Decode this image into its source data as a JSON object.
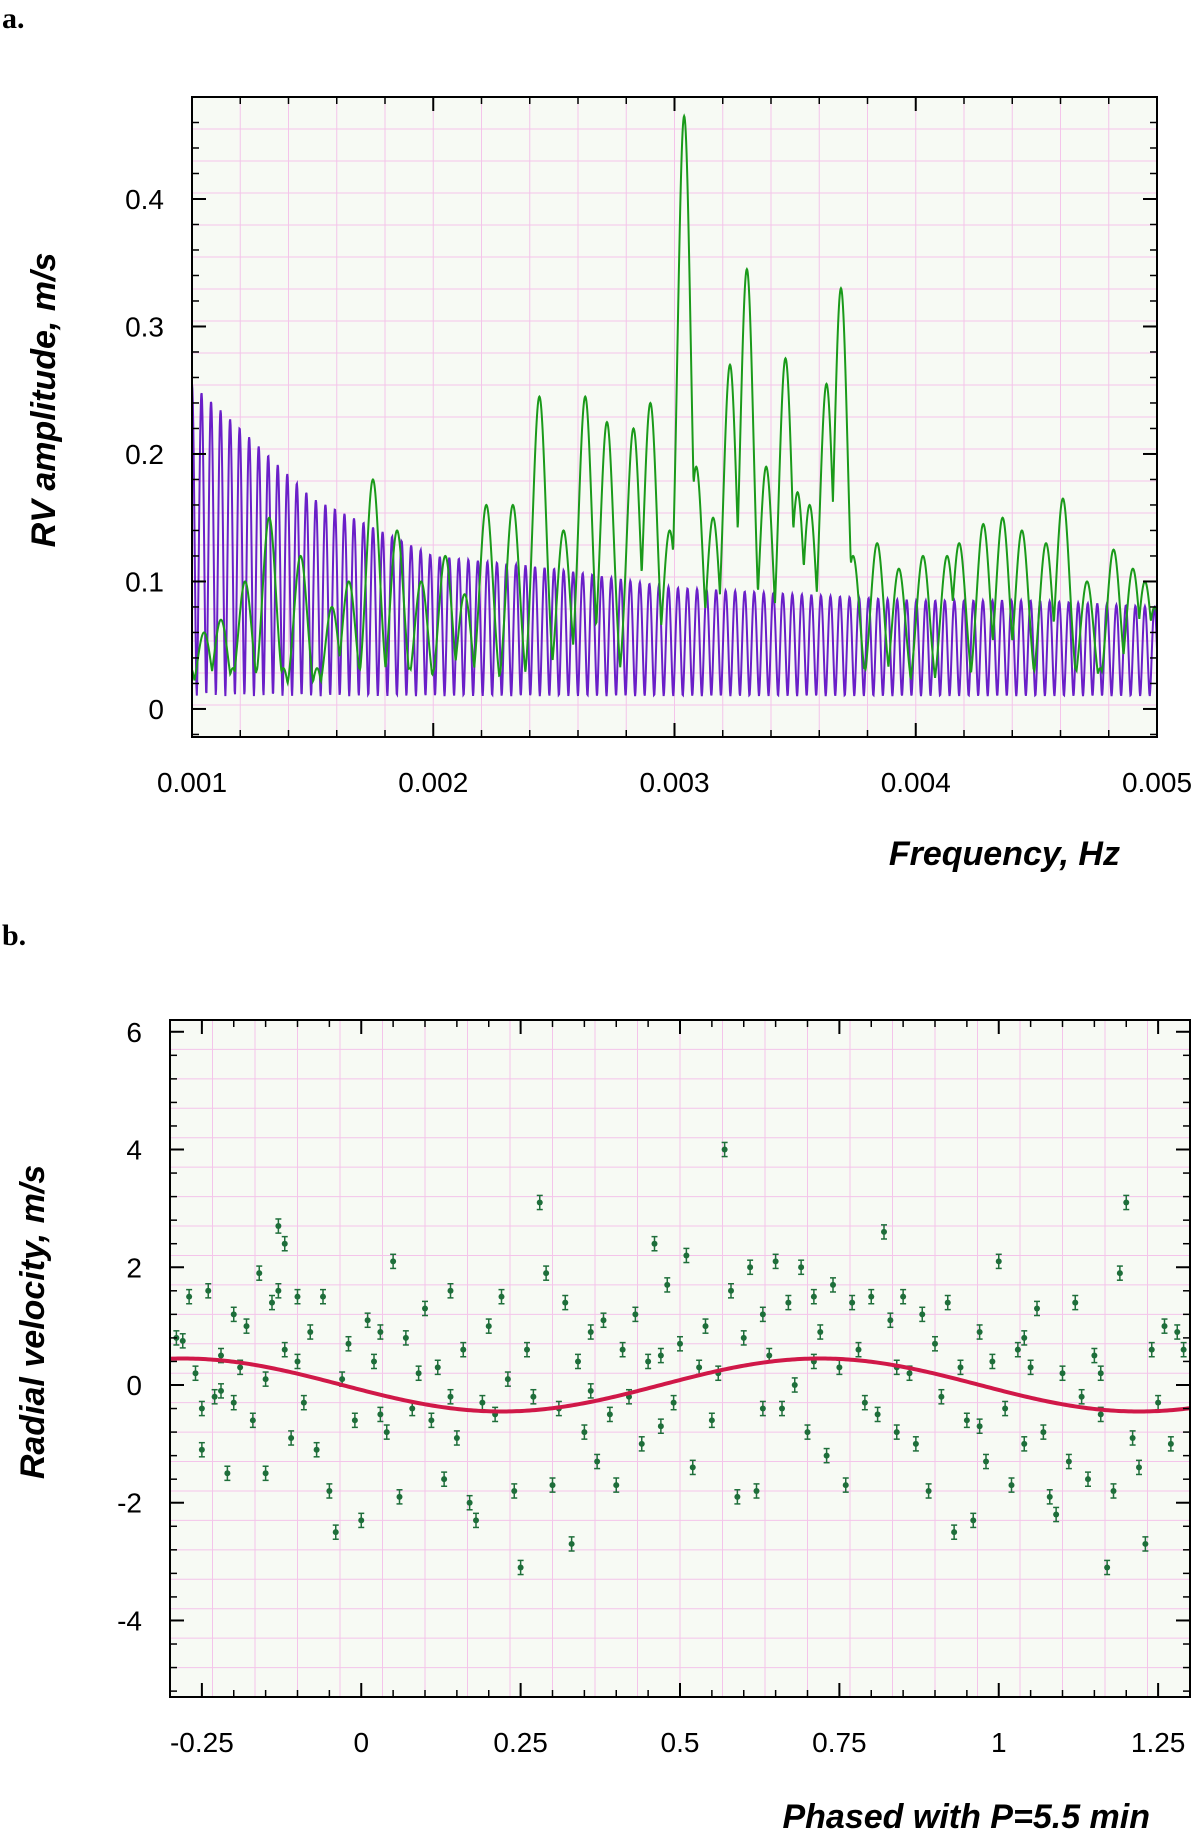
{
  "colors": {
    "plot_bg": "#f7faf4",
    "grid": "#f4c4ea",
    "green": "#1a9a1a",
    "purple": "#6a1fc8",
    "point": "#1e6e3a",
    "fit": "#d01848",
    "frame": "#000000"
  },
  "panels": [
    {
      "letter": "a."
    },
    {
      "letter": "b."
    }
  ],
  "chart_data": [
    {
      "type": "line",
      "title": "",
      "xlabel": "Frequency, Hz",
      "ylabel": "RV amplitude, m/s",
      "xlim": [
        0.001,
        0.005
      ],
      "ylim": [
        -0.022,
        0.48
      ],
      "xticks": [
        0.001,
        0.002,
        0.003,
        0.004,
        0.005
      ],
      "xtick_labels": [
        "0.001",
        "0.002",
        "0.003",
        "0.004",
        "0.005"
      ],
      "yticks": [
        0,
        0.1,
        0.2,
        0.3,
        0.4
      ],
      "ytick_labels": [
        "0",
        "0.1",
        "0.2",
        "0.3",
        "0.4"
      ],
      "grid": true,
      "series": [
        {
          "name": "periodogram (green)",
          "color": "#1a9a1a",
          "peaks": [
            [
              0.00105,
              0.06
            ],
            [
              0.00112,
              0.07
            ],
            [
              0.00122,
              0.1
            ],
            [
              0.00132,
              0.15
            ],
            [
              0.00145,
              0.12
            ],
            [
              0.00158,
              0.08
            ],
            [
              0.00165,
              0.1
            ],
            [
              0.00175,
              0.18
            ],
            [
              0.00185,
              0.14
            ],
            [
              0.00195,
              0.1
            ],
            [
              0.00205,
              0.12
            ],
            [
              0.00213,
              0.09
            ],
            [
              0.00222,
              0.16
            ],
            [
              0.00233,
              0.16
            ],
            [
              0.00244,
              0.245
            ],
            [
              0.00254,
              0.14
            ],
            [
              0.00263,
              0.245
            ],
            [
              0.00272,
              0.225
            ],
            [
              0.00283,
              0.22
            ],
            [
              0.0029,
              0.24
            ],
            [
              0.00298,
              0.14
            ],
            [
              0.00304,
              0.465
            ],
            [
              0.00309,
              0.19
            ],
            [
              0.00316,
              0.15
            ],
            [
              0.00323,
              0.27
            ],
            [
              0.0033,
              0.345
            ],
            [
              0.00338,
              0.19
            ],
            [
              0.00346,
              0.275
            ],
            [
              0.00351,
              0.17
            ],
            [
              0.00356,
              0.16
            ],
            [
              0.00363,
              0.255
            ],
            [
              0.00369,
              0.33
            ],
            [
              0.00374,
              0.12
            ],
            [
              0.00384,
              0.13
            ],
            [
              0.00393,
              0.11
            ],
            [
              0.00403,
              0.12
            ],
            [
              0.00413,
              0.12
            ],
            [
              0.00418,
              0.13
            ],
            [
              0.00428,
              0.145
            ],
            [
              0.00436,
              0.15
            ],
            [
              0.00444,
              0.14
            ],
            [
              0.00454,
              0.13
            ],
            [
              0.00461,
              0.165
            ],
            [
              0.00471,
              0.1
            ],
            [
              0.00482,
              0.125
            ],
            [
              0.0049,
              0.11
            ],
            [
              0.00495,
              0.1
            ],
            [
              0.00499,
              0.08
            ]
          ]
        },
        {
          "name": "window function (purple)",
          "color": "#6a1fc8",
          "comb_spacing_hz": 3.95e-05,
          "envelope": [
            [
              0.001,
              0.255
            ],
            [
              0.0012,
              0.22
            ],
            [
              0.0015,
              0.165
            ],
            [
              0.002,
              0.12
            ],
            [
              0.0025,
              0.11
            ],
            [
              0.003,
              0.095
            ],
            [
              0.0035,
              0.09
            ],
            [
              0.004,
              0.085
            ],
            [
              0.0045,
              0.085
            ],
            [
              0.005,
              0.08
            ]
          ],
          "minimum": 0.01
        }
      ]
    },
    {
      "type": "scatter",
      "title": "",
      "xlabel": "Phased with P=5.5 min",
      "ylabel": "Radial velocity, m/s",
      "xlim": [
        -0.3,
        1.3
      ],
      "ylim": [
        -5.3,
        6.2
      ],
      "xticks": [
        -0.25,
        0,
        0.25,
        0.5,
        0.75,
        1,
        1.25
      ],
      "xtick_labels": [
        "-0.25",
        "0",
        "0.25",
        "0.5",
        "0.75",
        "1",
        "1.25"
      ],
      "yticks": [
        -4,
        -2,
        0,
        2,
        4,
        6
      ],
      "ytick_labels": [
        "-4",
        "-2",
        "0",
        "2",
        "4",
        "6"
      ],
      "grid": true,
      "fit": {
        "name": "sinusoid fit",
        "amplitude": 0.45,
        "phase_of_max": 0.72,
        "color": "#d01848"
      },
      "error_bar": 0.12,
      "points": [
        [
          -0.29,
          0.8
        ],
        [
          -0.28,
          0.75
        ],
        [
          -0.27,
          1.5
        ],
        [
          -0.26,
          0.2
        ],
        [
          -0.25,
          -0.4
        ],
        [
          -0.25,
          -1.1
        ],
        [
          -0.24,
          1.6
        ],
        [
          -0.23,
          -0.2
        ],
        [
          -0.22,
          0.5
        ],
        [
          -0.21,
          -1.5
        ],
        [
          -0.2,
          1.2
        ],
        [
          -0.2,
          -0.3
        ],
        [
          -0.19,
          0.3
        ],
        [
          -0.18,
          1.0
        ],
        [
          -0.17,
          -0.6
        ],
        [
          -0.16,
          1.9
        ],
        [
          -0.15,
          -1.5
        ],
        [
          -0.15,
          0.1
        ],
        [
          -0.14,
          1.4
        ],
        [
          -0.13,
          2.7
        ],
        [
          -0.13,
          1.6
        ],
        [
          -0.12,
          2.4
        ],
        [
          -0.11,
          -0.9
        ],
        [
          -0.1,
          0.4
        ],
        [
          -0.1,
          1.5
        ],
        [
          -0.09,
          -0.3
        ],
        [
          -0.08,
          0.9
        ],
        [
          -0.07,
          -1.1
        ],
        [
          -0.06,
          1.5
        ],
        [
          -0.05,
          -1.8
        ],
        [
          -0.04,
          -2.5
        ],
        [
          -0.03,
          0.1
        ],
        [
          -0.02,
          0.7
        ],
        [
          -0.01,
          -0.6
        ],
        [
          0.0,
          -2.3
        ],
        [
          0.01,
          1.1
        ],
        [
          0.02,
          0.4
        ],
        [
          0.03,
          -0.5
        ],
        [
          0.04,
          -0.8
        ],
        [
          0.05,
          2.1
        ],
        [
          0.06,
          -1.9
        ],
        [
          0.07,
          0.8
        ],
        [
          0.08,
          -0.4
        ],
        [
          0.09,
          0.2
        ],
        [
          0.1,
          1.3
        ],
        [
          0.11,
          -0.6
        ],
        [
          0.12,
          0.3
        ],
        [
          0.13,
          -1.6
        ],
        [
          0.14,
          1.6
        ],
        [
          0.15,
          -0.9
        ],
        [
          0.16,
          0.6
        ],
        [
          0.17,
          -2.0
        ],
        [
          0.18,
          -2.3
        ],
        [
          0.19,
          -0.3
        ],
        [
          0.2,
          1.0
        ],
        [
          0.21,
          -0.5
        ],
        [
          0.22,
          1.5
        ],
        [
          0.23,
          0.1
        ],
        [
          0.24,
          -1.8
        ],
        [
          0.25,
          -3.1
        ],
        [
          0.26,
          0.6
        ],
        [
          0.27,
          -0.2
        ],
        [
          0.28,
          3.1
        ],
        [
          0.29,
          1.9
        ],
        [
          0.3,
          -1.7
        ],
        [
          0.31,
          -0.4
        ],
        [
          0.32,
          1.4
        ],
        [
          0.33,
          -2.7
        ],
        [
          0.34,
          0.4
        ],
        [
          0.35,
          -0.8
        ],
        [
          0.36,
          0.9
        ],
        [
          0.37,
          -1.3
        ],
        [
          0.38,
          1.1
        ],
        [
          0.39,
          -0.5
        ],
        [
          0.4,
          -1.7
        ],
        [
          0.41,
          0.6
        ],
        [
          0.42,
          -0.2
        ],
        [
          0.43,
          1.2
        ],
        [
          0.44,
          -1.0
        ],
        [
          0.45,
          0.4
        ],
        [
          0.46,
          2.4
        ],
        [
          0.47,
          -0.7
        ],
        [
          0.48,
          1.7
        ],
        [
          0.49,
          -0.3
        ],
        [
          0.5,
          0.7
        ],
        [
          0.51,
          2.2
        ],
        [
          0.52,
          -1.4
        ],
        [
          0.53,
          0.3
        ],
        [
          0.54,
          1.0
        ],
        [
          0.55,
          -0.6
        ],
        [
          0.56,
          0.2
        ],
        [
          0.57,
          4.0
        ],
        [
          0.58,
          1.6
        ],
        [
          0.59,
          -1.9
        ],
        [
          0.6,
          0.8
        ],
        [
          0.61,
          2.0
        ],
        [
          0.62,
          -1.8
        ],
        [
          0.63,
          1.2
        ],
        [
          0.64,
          0.5
        ],
        [
          0.65,
          2.1
        ],
        [
          0.66,
          -0.4
        ],
        [
          0.67,
          1.4
        ],
        [
          0.68,
          0.0
        ],
        [
          0.69,
          2.0
        ],
        [
          0.7,
          -0.8
        ],
        [
          0.71,
          1.5
        ],
        [
          0.72,
          0.9
        ],
        [
          0.73,
          -1.2
        ],
        [
          0.74,
          1.7
        ],
        [
          0.75,
          0.3
        ],
        [
          0.76,
          -1.7
        ],
        [
          0.77,
          1.4
        ],
        [
          0.78,
          0.6
        ],
        [
          0.79,
          -0.3
        ],
        [
          0.8,
          1.5
        ],
        [
          0.81,
          -0.5
        ],
        [
          0.82,
          2.6
        ],
        [
          0.83,
          1.1
        ],
        [
          0.84,
          -0.8
        ],
        [
          0.85,
          1.5
        ],
        [
          0.86,
          0.2
        ],
        [
          0.87,
          -1.0
        ],
        [
          0.88,
          1.2
        ],
        [
          0.89,
          -1.8
        ],
        [
          0.9,
          0.7
        ],
        [
          0.91,
          -0.2
        ],
        [
          0.92,
          1.4
        ],
        [
          0.93,
          -2.5
        ],
        [
          0.94,
          0.3
        ],
        [
          0.95,
          -0.6
        ],
        [
          0.96,
          -2.3
        ],
        [
          0.97,
          0.9
        ],
        [
          0.98,
          -1.3
        ],
        [
          0.99,
          0.4
        ],
        [
          1.0,
          2.1
        ],
        [
          1.01,
          -0.4
        ],
        [
          1.02,
          -1.7
        ],
        [
          1.03,
          0.6
        ],
        [
          1.04,
          -1.0
        ],
        [
          1.05,
          0.3
        ],
        [
          1.06,
          1.3
        ],
        [
          1.07,
          -0.8
        ],
        [
          1.08,
          -1.9
        ],
        [
          1.09,
          -2.2
        ],
        [
          1.1,
          0.2
        ],
        [
          1.11,
          -1.3
        ],
        [
          1.12,
          1.4
        ],
        [
          1.13,
          -0.2
        ],
        [
          1.14,
          -1.6
        ],
        [
          1.15,
          0.5
        ],
        [
          1.16,
          -0.5
        ],
        [
          1.17,
          -3.1
        ],
        [
          1.18,
          -1.8
        ],
        [
          1.19,
          1.9
        ],
        [
          1.2,
          3.1
        ],
        [
          1.21,
          -0.9
        ],
        [
          1.22,
          -1.4
        ],
        [
          1.23,
          -2.7
        ],
        [
          1.24,
          0.6
        ],
        [
          1.25,
          -0.3
        ],
        [
          1.26,
          1.0
        ],
        [
          1.27,
          -1.0
        ],
        [
          1.28,
          0.9
        ],
        [
          1.29,
          0.6
        ],
        [
          -0.22,
          -0.1
        ],
        [
          -0.12,
          0.6
        ],
        [
          0.03,
          0.9
        ],
        [
          0.14,
          -0.2
        ],
        [
          0.36,
          -0.1
        ],
        [
          0.47,
          0.5
        ],
        [
          0.63,
          -0.4
        ],
        [
          0.71,
          0.4
        ],
        [
          0.84,
          0.3
        ],
        [
          0.97,
          -0.7
        ],
        [
          1.04,
          0.8
        ],
        [
          1.16,
          0.2
        ]
      ]
    }
  ]
}
